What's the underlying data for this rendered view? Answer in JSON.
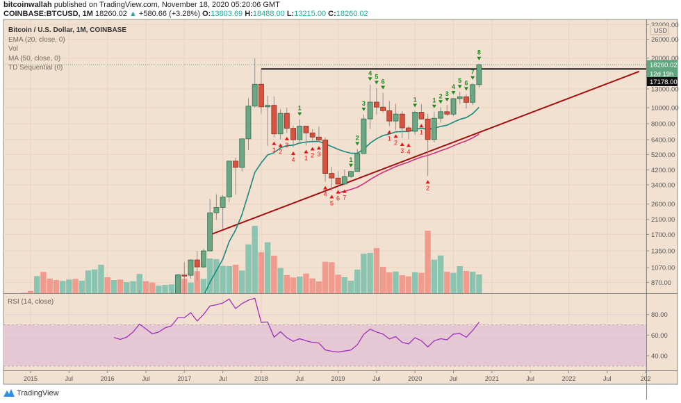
{
  "header": {
    "author": "bitcoinwallah",
    "published_text": "published on TradingView.com, November 18, 2020 05:20:06 GMT",
    "symbol": "COINBASE:BTCUSD, 1M",
    "last": "18260.02",
    "change_arrow": "▲",
    "change": "+580.66 (+3.28%)",
    "o_label": "O:",
    "o": "13803.69",
    "h_label": "H:",
    "h": "18488.00",
    "l_label": "L:",
    "l": "13215.00",
    "c_label": "C:",
    "c": "18260.02"
  },
  "legend": {
    "title": "Bitcoin / U.S. Dollar, 1M, COINBASE",
    "ema": "EMA (20, close, 0)",
    "vol": "Vol",
    "ma": "MA (50, close, 0)",
    "td": "TD Sequential (0)"
  },
  "rsi_title": "RSI (14, close)",
  "footer": {
    "brand": "TradingView"
  },
  "colors": {
    "background": "#f2e0d0",
    "up": "#6ba685",
    "up_border": "#2f6e4c",
    "down": "#d8523f",
    "down_border": "#8d2c1f",
    "vol_up": "#86c2b0",
    "vol_down": "#f0978a",
    "ema": "#16897e",
    "ma": "#cf2f7b",
    "trendline": "#a30f0f",
    "resistance": "#1e1e1e",
    "rsi": "#9c30b8",
    "rsi_band": "#e6c8d5",
    "td_sell": "#1c8a1c",
    "td_buy": "#e81010"
  },
  "chart_data": {
    "type": "candlestick",
    "scale": "log",
    "grid": true,
    "price_axis": {
      "currency": "USD",
      "labels": [
        "32000.00",
        "26000.00",
        "20000.00",
        "13000.00",
        "10000.00",
        "8000.00",
        "6400.00",
        "5200.00",
        "4200.00",
        "3400.00",
        "2600.00",
        "2100.00",
        "1700.00",
        "1350.00",
        "1070.00",
        "870.00"
      ],
      "last_price_label": "18260.02",
      "countdown_label": "12d 19h",
      "crosshair_label": "17178.00"
    },
    "time_axis": {
      "labels": [
        [
          "2015",
          "2015-01"
        ],
        [
          "Jul",
          "2015-07"
        ],
        [
          "2016",
          "2016-01"
        ],
        [
          "Jul",
          "2016-07"
        ],
        [
          "2017",
          "2017-01"
        ],
        [
          "Jul",
          "2017-07"
        ],
        [
          "2018",
          "2018-01"
        ],
        [
          "Jul",
          "2018-07"
        ],
        [
          "2019",
          "2019-01"
        ],
        [
          "Jul",
          "2019-07"
        ],
        [
          "2020",
          "2020-01"
        ],
        [
          "Jul",
          "2020-07"
        ],
        [
          "2021",
          "2021-01"
        ],
        [
          "Jul",
          "2021-07"
        ],
        [
          "2022",
          "2022-01"
        ],
        [
          "Jul",
          "2022-07"
        ],
        [
          "202",
          "2023-01"
        ]
      ]
    },
    "columns": [
      "month",
      "open",
      "high",
      "low",
      "close",
      "volume_relative"
    ],
    "candles": [
      [
        "2014-12",
        378,
        400,
        310,
        320,
        0.7
      ],
      [
        "2015-01",
        320,
        320,
        170,
        217,
        3.3
      ],
      [
        "2015-02",
        217,
        265,
        212,
        254,
        24.7
      ],
      [
        "2015-03",
        254,
        300,
        237,
        244,
        30.7
      ],
      [
        "2015-04",
        244,
        260,
        215,
        236,
        21
      ],
      [
        "2015-05",
        236,
        248,
        225,
        230,
        19
      ],
      [
        "2015-06",
        230,
        268,
        220,
        263,
        17.7
      ],
      [
        "2015-07",
        263,
        318,
        255,
        284,
        19.7
      ],
      [
        "2015-08",
        284,
        285,
        198,
        230,
        20.7
      ],
      [
        "2015-09",
        230,
        245,
        225,
        236,
        18
      ],
      [
        "2015-10",
        236,
        330,
        235,
        314,
        32.7
      ],
      [
        "2015-11",
        314,
        500,
        300,
        377,
        34.3
      ],
      [
        "2015-12",
        377,
        468,
        340,
        430,
        41
      ],
      [
        "2016-01",
        430,
        460,
        350,
        368,
        23
      ],
      [
        "2016-02",
        368,
        443,
        365,
        437,
        19
      ],
      [
        "2016-03",
        437,
        440,
        395,
        416,
        19.7
      ],
      [
        "2016-04",
        416,
        470,
        412,
        448,
        16
      ],
      [
        "2016-05",
        448,
        550,
        445,
        531,
        17.3
      ],
      [
        "2016-06",
        531,
        780,
        525,
        673,
        27.7
      ],
      [
        "2016-07",
        673,
        700,
        580,
        624,
        17.3
      ],
      [
        "2016-08",
        624,
        630,
        470,
        573,
        15.3
      ],
      [
        "2016-09",
        573,
        630,
        590,
        609,
        11
      ],
      [
        "2016-10",
        609,
        720,
        606,
        698,
        12
      ],
      [
        "2016-11",
        698,
        760,
        680,
        742,
        12.7
      ],
      [
        "2016-12",
        742,
        980,
        742,
        963,
        27.3
      ],
      [
        "2017-01",
        963,
        1150,
        750,
        960,
        20.7
      ],
      [
        "2017-02",
        960,
        1200,
        915,
        1190,
        15.3
      ],
      [
        "2017-03",
        1190,
        1350,
        890,
        1080,
        31.7
      ],
      [
        "2017-04",
        1080,
        1390,
        1060,
        1350,
        20.7
      ],
      [
        "2017-05",
        1350,
        2790,
        1350,
        2300,
        50
      ],
      [
        "2017-06",
        2300,
        2980,
        2080,
        2480,
        49
      ],
      [
        "2017-07",
        2480,
        2950,
        1840,
        2870,
        39.3
      ],
      [
        "2017-08",
        2870,
        4750,
        2670,
        4740,
        39
      ],
      [
        "2017-09",
        4740,
        4980,
        2970,
        4340,
        41
      ],
      [
        "2017-10",
        4340,
        6470,
        4110,
        6470,
        32.7
      ],
      [
        "2017-11",
        6470,
        11400,
        5530,
        10230,
        70.3
      ],
      [
        "2017-12",
        10230,
        19891,
        10000,
        13880,
        97
      ],
      [
        "2018-01",
        13880,
        17170,
        9200,
        10120,
        59
      ],
      [
        "2018-02",
        10120,
        11800,
        5870,
        10330,
        73.3
      ],
      [
        "2018-03",
        10330,
        11700,
        6600,
        6930,
        54
      ],
      [
        "2018-04",
        6930,
        9770,
        6430,
        9240,
        36.3
      ],
      [
        "2018-05",
        9240,
        10000,
        7060,
        7500,
        26
      ],
      [
        "2018-06",
        7500,
        7770,
        5750,
        6390,
        22.7
      ],
      [
        "2018-07",
        6390,
        8500,
        6070,
        7730,
        24
      ],
      [
        "2018-08",
        7730,
        7760,
        5880,
        7030,
        28.3
      ],
      [
        "2018-09",
        7030,
        7410,
        6120,
        6630,
        21.3
      ],
      [
        "2018-10",
        6630,
        7680,
        6200,
        6370,
        17
      ],
      [
        "2018-11",
        6370,
        6600,
        3550,
        3990,
        45.3
      ],
      [
        "2018-12",
        3990,
        4380,
        3130,
        3740,
        44.7
      ],
      [
        "2019-01",
        3740,
        4110,
        3350,
        3440,
        26.7
      ],
      [
        "2019-02",
        3440,
        4200,
        3380,
        3820,
        23
      ],
      [
        "2019-03",
        3820,
        4140,
        3740,
        4100,
        18
      ],
      [
        "2019-04",
        4100,
        5620,
        4100,
        5270,
        34
      ],
      [
        "2019-05",
        5270,
        9090,
        5330,
        8550,
        57
      ],
      [
        "2019-06",
        8550,
        13880,
        7460,
        10810,
        58
      ],
      [
        "2019-07",
        10810,
        13200,
        9100,
        10080,
        65
      ],
      [
        "2019-08",
        10080,
        12330,
        9320,
        9590,
        38
      ],
      [
        "2019-09",
        9590,
        10950,
        7730,
        8300,
        30
      ],
      [
        "2019-10",
        8300,
        10540,
        7300,
        9150,
        31.3
      ],
      [
        "2019-11",
        9150,
        9510,
        6520,
        7540,
        26
      ],
      [
        "2019-12",
        7540,
        7740,
        6430,
        7190,
        24.3
      ],
      [
        "2020-01",
        7190,
        9580,
        6850,
        9390,
        30.3
      ],
      [
        "2020-02",
        9390,
        10500,
        8450,
        8540,
        29.3
      ],
      [
        "2020-03",
        8540,
        9200,
        3850,
        6410,
        90
      ],
      [
        "2020-04",
        6410,
        9460,
        6150,
        8630,
        48.3
      ],
      [
        "2020-05",
        8630,
        10070,
        8120,
        9450,
        54.3
      ],
      [
        "2020-06",
        9450,
        10400,
        8910,
        9140,
        31
      ],
      [
        "2020-07",
        9140,
        11450,
        8900,
        11350,
        29.3
      ],
      [
        "2020-08",
        11350,
        12480,
        10520,
        11650,
        39
      ],
      [
        "2020-09",
        11650,
        12100,
        9880,
        10780,
        32
      ],
      [
        "2020-10",
        10780,
        14100,
        10380,
        13800,
        31
      ],
      [
        "2020-11",
        13803.69,
        18488,
        13215,
        18260.02,
        27
      ]
    ],
    "indicators": {
      "ema_period": 20,
      "ma_period": 50
    },
    "td_sequential": [
      [
        "2018-03",
        "1",
        "buy"
      ],
      [
        "2018-04",
        "2",
        "buy"
      ],
      [
        "2018-05",
        "3",
        "buy"
      ],
      [
        "2018-06",
        "4",
        "buy"
      ],
      [
        "2018-07",
        "1",
        "sell"
      ],
      [
        "2018-08",
        "1",
        "buy"
      ],
      [
        "2018-09",
        "2",
        "buy"
      ],
      [
        "2018-10",
        "3",
        "buy"
      ],
      [
        "2018-11",
        "4",
        "buy"
      ],
      [
        "2018-12",
        "5",
        "buy"
      ],
      [
        "2019-01",
        "6",
        "buy"
      ],
      [
        "2019-02",
        "7",
        "buy"
      ],
      [
        "2019-03",
        "1",
        "sell"
      ],
      [
        "2019-04",
        "2",
        "sell"
      ],
      [
        "2019-05",
        "3",
        "sell"
      ],
      [
        "2019-06",
        "4",
        "sell"
      ],
      [
        "2019-07",
        "5",
        "sell"
      ],
      [
        "2019-08",
        "6",
        "sell"
      ],
      [
        "2019-09",
        "1",
        "buy"
      ],
      [
        "2019-10",
        "2",
        "buy"
      ],
      [
        "2019-11",
        "3",
        "buy"
      ],
      [
        "2019-12",
        "4",
        "buy"
      ],
      [
        "2020-01",
        "1",
        "sell"
      ],
      [
        "2020-02",
        "1",
        "buy"
      ],
      [
        "2020-03",
        "2",
        "buy"
      ],
      [
        "2020-04",
        "1",
        "sell"
      ],
      [
        "2020-05",
        "2",
        "sell"
      ],
      [
        "2020-06",
        "3",
        "sell"
      ],
      [
        "2020-07",
        "4",
        "sell"
      ],
      [
        "2020-08",
        "5",
        "sell"
      ],
      [
        "2020-09",
        "6",
        "sell"
      ],
      [
        "2020-10",
        "7",
        "sell"
      ],
      [
        "2020-11",
        "8",
        "sell"
      ]
    ],
    "resistance_line": {
      "price": 17178,
      "from": "2018-01"
    },
    "trendline": {
      "start": [
        "2017-05",
        1690
      ],
      "end": [
        "2022-12",
        16600
      ]
    },
    "rsi": {
      "start": "2016-02",
      "values": [
        57.8,
        55.8,
        58,
        63,
        70.7,
        66,
        61.3,
        63,
        67,
        69,
        77,
        77,
        81.8,
        73.8,
        80,
        88.4,
        89.5,
        91.3,
        95.1,
        85.8,
        90.7,
        94,
        95.8,
        72.4,
        72.8,
        58,
        63.3,
        57.5,
        54,
        56.5,
        54.5,
        53,
        52.3,
        45.6,
        44.3,
        43.5,
        44.5,
        45.5,
        50.7,
        60.7,
        65.8,
        63,
        61.1,
        56.2,
        58.5,
        52.9,
        51.5,
        57.5,
        54.5,
        48.5,
        54.5,
        56.5,
        55.5,
        61,
        61.5,
        58,
        64.5,
        72.5
      ],
      "labels": [
        "80.00",
        "60.00",
        "40.00"
      ],
      "levels": [
        80,
        60,
        40
      ],
      "band": [
        30,
        70
      ]
    }
  }
}
